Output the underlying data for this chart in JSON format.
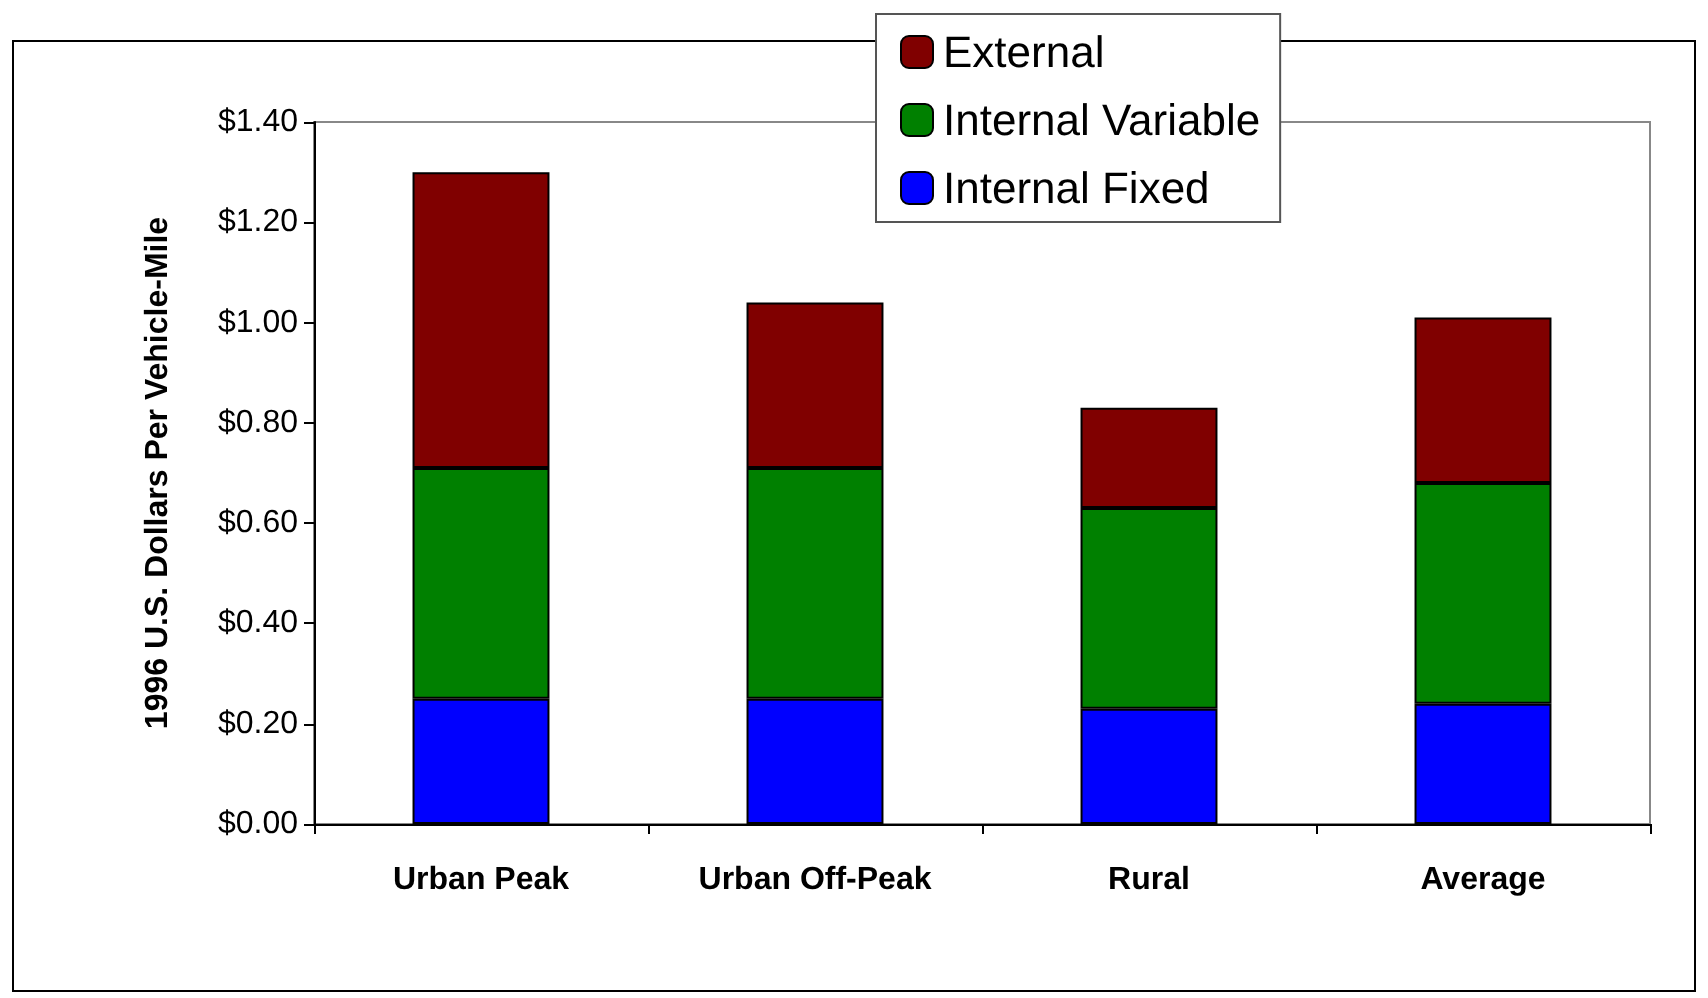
{
  "chart_data": {
    "type": "bar",
    "stacked": true,
    "ylabel": "1996 U.S. Dollars Per Vehicle-Mile",
    "categories": [
      "Urban Peak",
      "Urban Off-Peak",
      "Rural",
      "Average"
    ],
    "series": [
      {
        "name": "Internal Fixed",
        "color": "#0000ff",
        "values": [
          0.25,
          0.25,
          0.23,
          0.24
        ]
      },
      {
        "name": "Internal Variable",
        "color": "#008000",
        "values": [
          0.46,
          0.46,
          0.4,
          0.44
        ]
      },
      {
        "name": "External",
        "color": "#800000",
        "values": [
          0.59,
          0.33,
          0.2,
          0.33
        ]
      }
    ],
    "ylim": [
      0,
      1.4
    ],
    "yticks": [
      {
        "value": 0,
        "label": "$0.00"
      },
      {
        "value": 0.2,
        "label": "$0.20"
      },
      {
        "value": 0.4,
        "label": "$0.40"
      },
      {
        "value": 0.6,
        "label": "$0.60"
      },
      {
        "value": 0.8,
        "label": "$0.80"
      },
      {
        "value": 1.0,
        "label": "$1.00"
      },
      {
        "value": 1.2,
        "label": "$1.20"
      },
      {
        "value": 1.4,
        "label": "$1.40"
      }
    ],
    "grid": false,
    "legend": "top right"
  }
}
